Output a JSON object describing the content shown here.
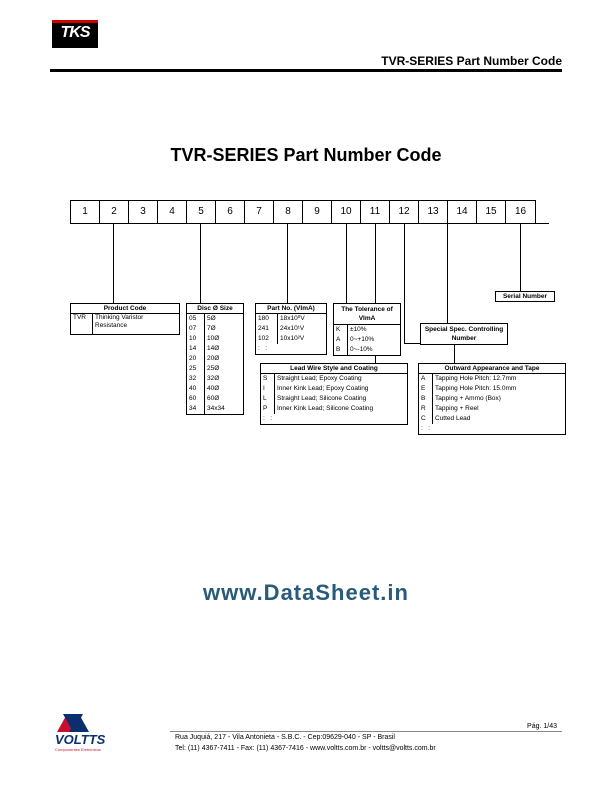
{
  "header": {
    "logo_text": "TKS",
    "title": "TVR-SERIES Part Number Code"
  },
  "main_title": "TVR-SERIES   Part Number Code",
  "cells": [
    "1",
    "2",
    "3",
    "4",
    "5",
    "6",
    "7",
    "8",
    "9",
    "10",
    "11",
    "12",
    "13",
    "14",
    "15",
    "16"
  ],
  "product_code": {
    "title": "Product Code",
    "rows": [
      [
        "TVR",
        "Thinking Varistor Resistance"
      ]
    ]
  },
  "disc_size": {
    "title": "Disc   Ø Size",
    "rows": [
      [
        "05",
        "5Ø"
      ],
      [
        "07",
        "7Ø"
      ],
      [
        "10",
        "10Ø"
      ],
      [
        "14",
        "14Ø"
      ],
      [
        "20",
        "20Ø"
      ],
      [
        "25",
        "25Ø"
      ],
      [
        "32",
        "32Ø"
      ],
      [
        "40",
        "40Ø"
      ],
      [
        "60",
        "60Ø"
      ],
      [
        "34",
        "34x34"
      ]
    ]
  },
  "part_no": {
    "title": "Part No. (VImA)",
    "rows": [
      [
        "180",
        "18x10⁰V"
      ],
      [
        "241",
        "24x10¹V"
      ],
      [
        "102",
        "10x10²V"
      ]
    ]
  },
  "tolerance": {
    "title": "The Tolerance of VImA",
    "rows": [
      [
        "K",
        "±10%"
      ],
      [
        "A",
        "0~+10%"
      ],
      [
        "B",
        "0~-10%"
      ]
    ]
  },
  "lead_wire": {
    "title": "Lead Wire Style and Coating",
    "rows": [
      [
        "S",
        "Straight Lead; Epoxy Coating"
      ],
      [
        "I",
        "Inner Kink Lead; Epoxy Coating"
      ],
      [
        "L",
        "Straight Lead; Silicone Coating"
      ],
      [
        "P",
        "Inner Kink Lead; Silicone Coating"
      ]
    ]
  },
  "outward": {
    "title": "Outward Appearance and Tape",
    "rows": [
      [
        "A",
        "Tapping Hole Pitch: 12.7mm"
      ],
      [
        "E",
        "Tapping Hole Pitch: 15.0mm"
      ],
      [
        "B",
        "Tapping + Ammo (Box)"
      ],
      [
        "R",
        "Tapping + Reel"
      ],
      [
        "C",
        "Cutted Lead"
      ]
    ]
  },
  "special_spec": {
    "title": "Special Spec. Controlling Number"
  },
  "serial_number": {
    "title": "Serial Number"
  },
  "watermark": "www.DataSheet.in",
  "footer": {
    "brand": "VOLTTS",
    "sub": "Componentes Eletrônicos",
    "line1": "Rua Juquiá, 217   -   Vila Antonieta   -   S.B.C.   -   Cep:09629-040   -   SP - Brasil",
    "line2": "Tel: (11) 4367-7411   -   Fax: (11) 4367-7416   -   www.voltts.com.br   -   voltts@voltts.com.br",
    "page": "Pág. 1/43"
  },
  "colors": {
    "logo_red": "#c8102e",
    "logo_blue": "#0b2e6f",
    "watermark": "#2a5a7a"
  }
}
